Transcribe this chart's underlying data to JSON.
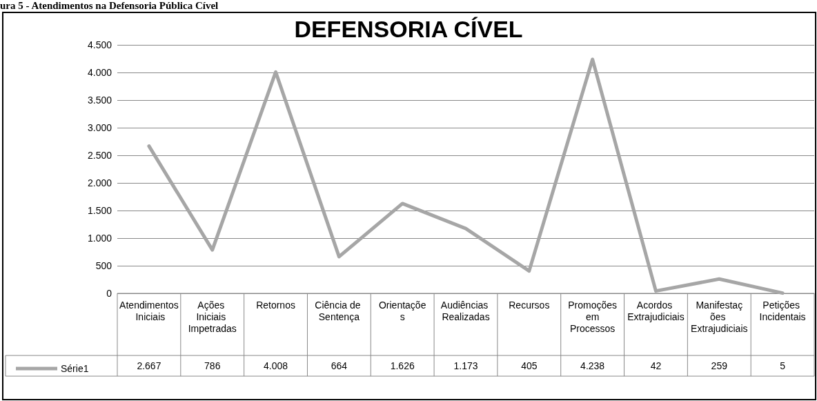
{
  "chart_data": {
    "type": "line",
    "title": "DEFENSORIA CÍVEL",
    "annotations": [
      "ura 5 - Atendimentos na Defensoria Pública Cível"
    ],
    "categories": [
      "Atendimentos Iniciais",
      "Ações Iniciais Impetradas",
      "Retornos",
      "Ciência de Sentença",
      "Orientações",
      "Audiências Realizadas",
      "Recursos",
      "Promoções em Processos",
      "Acordos Extrajudiciais",
      "Manifestações Extrajudiciais",
      "Petições Incidentais"
    ],
    "series": [
      {
        "name": "Série1",
        "color": "#a6a6a6",
        "values": [
          2667,
          786,
          4008,
          664,
          1626,
          1173,
          405,
          4238,
          42,
          259,
          5
        ],
        "value_labels": [
          "2.667",
          "786",
          "4.008",
          "664",
          "1.626",
          "1.173",
          "405",
          "4.238",
          "42",
          "259",
          "5"
        ]
      }
    ],
    "ylim": [
      0,
      4500
    ],
    "yticks": [
      {
        "value": 0,
        "label": "0"
      },
      {
        "value": 500,
        "label": "500"
      },
      {
        "value": 1000,
        "label": "1.000"
      },
      {
        "value": 1500,
        "label": "1.500"
      },
      {
        "value": 2000,
        "label": "2.000"
      },
      {
        "value": 2500,
        "label": "2.500"
      },
      {
        "value": 3000,
        "label": "3.000"
      },
      {
        "value": 3500,
        "label": "3.500"
      },
      {
        "value": 4000,
        "label": "4.000"
      },
      {
        "value": 4500,
        "label": "4.500"
      }
    ],
    "grid": "y",
    "legend": "bottom left",
    "marker": "none",
    "line_style": "solid"
  }
}
